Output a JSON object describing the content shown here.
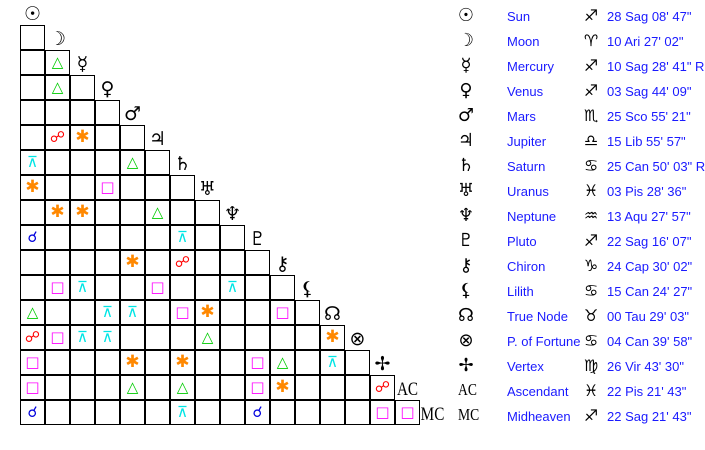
{
  "colors": {
    "trine": "#00cc00",
    "opposition": "#ff0000",
    "sextile": "#ff8800",
    "square": "#ff00ff",
    "quincunx": "#00e5e5",
    "conjunction": "#0000dd",
    "text": "#1a1aff"
  },
  "bodies": [
    {
      "icon": "sun-icon",
      "name": "Sun",
      "sign_icon": "sagittarius-icon",
      "position": "28 Sag 08' 47\""
    },
    {
      "icon": "moon-icon",
      "name": "Moon",
      "sign_icon": "aries-icon",
      "position": "10 Ari 27' 02\""
    },
    {
      "icon": "mercury-icon",
      "name": "Mercury",
      "sign_icon": "sagittarius-icon",
      "position": "10 Sag 28' 41\" R"
    },
    {
      "icon": "venus-icon",
      "name": "Venus",
      "sign_icon": "sagittarius-icon",
      "position": "03 Sag 44' 09\""
    },
    {
      "icon": "mars-icon",
      "name": "Mars",
      "sign_icon": "scorpio-icon",
      "position": "25 Sco 55' 21\""
    },
    {
      "icon": "jupiter-icon",
      "name": "Jupiter",
      "sign_icon": "libra-icon",
      "position": "15 Lib 55' 57\""
    },
    {
      "icon": "saturn-icon",
      "name": "Saturn",
      "sign_icon": "cancer-icon",
      "position": "25 Can 50' 03\" R"
    },
    {
      "icon": "uranus-icon",
      "name": "Uranus",
      "sign_icon": "pisces-icon",
      "position": "03 Pis 28' 36\""
    },
    {
      "icon": "neptune-icon",
      "name": "Neptune",
      "sign_icon": "aquarius-icon",
      "position": "13 Aqu 27' 57\""
    },
    {
      "icon": "pluto-icon",
      "name": "Pluto",
      "sign_icon": "sagittarius-icon",
      "position": "22 Sag 16' 07\""
    },
    {
      "icon": "chiron-icon",
      "name": "Chiron",
      "sign_icon": "capricorn-icon",
      "position": "24 Cap 30' 02\""
    },
    {
      "icon": "lilith-icon",
      "name": "Lilith",
      "sign_icon": "cancer-icon",
      "position": "15 Can 24' 27\""
    },
    {
      "icon": "true-node-icon",
      "name": "True Node",
      "sign_icon": "taurus-icon",
      "position": "00 Tau 29' 03\""
    },
    {
      "icon": "part-of-fortune-icon",
      "name": "P. of Fortune",
      "sign_icon": "cancer-icon",
      "position": "04 Can 39' 58\""
    },
    {
      "icon": "vertex-icon",
      "name": "Vertex",
      "sign_icon": "virgo-icon",
      "position": "26 Vir 43' 30\""
    },
    {
      "icon": "ascendant-icon",
      "label": "AC",
      "name": "Ascendant",
      "sign_icon": "pisces-icon",
      "position": "22 Pis 21' 43\""
    },
    {
      "icon": "midheaven-icon",
      "label": "MC",
      "name": "Midheaven",
      "sign_icon": "sagittarius-icon",
      "position": "22 Sag 21' 43\""
    }
  ],
  "aspect_grid": [
    [
      ""
    ],
    [
      "",
      "trine"
    ],
    [
      "",
      "trine",
      ""
    ],
    [
      "",
      "",
      "",
      ""
    ],
    [
      "",
      "opposition",
      "sextile",
      "",
      ""
    ],
    [
      "quincunx",
      "",
      "",
      "",
      "trine",
      ""
    ],
    [
      "sextile",
      "",
      "",
      "square",
      "",
      "",
      ""
    ],
    [
      "",
      "sextile",
      "sextile",
      "",
      "",
      "trine",
      "",
      ""
    ],
    [
      "conjunction",
      "",
      "",
      "",
      "",
      "",
      "quincunx",
      "",
      ""
    ],
    [
      "",
      "",
      "",
      "",
      "sextile",
      "",
      "opposition",
      "",
      "",
      ""
    ],
    [
      "",
      "square",
      "quincunx",
      "",
      "",
      "square",
      "",
      "",
      "quincunx",
      "",
      ""
    ],
    [
      "trine",
      "",
      "",
      "quincunx",
      "quincunx",
      "",
      "square",
      "sextile",
      "",
      "",
      "square",
      ""
    ],
    [
      "opposition",
      "square",
      "quincunx",
      "quincunx",
      "",
      "",
      "",
      "trine",
      "",
      "",
      "",
      "",
      "sextile"
    ],
    [
      "square",
      "",
      "",
      "",
      "sextile",
      "",
      "sextile",
      "",
      "",
      "square",
      "trine",
      "",
      "quincunx",
      ""
    ],
    [
      "square",
      "",
      "",
      "",
      "trine",
      "",
      "trine",
      "",
      "",
      "square",
      "sextile",
      "",
      "",
      "",
      "opposition"
    ],
    [
      "conjunction",
      "",
      "",
      "",
      "",
      "",
      "quincunx",
      "",
      "",
      "conjunction",
      "",
      "",
      "",
      "",
      "square",
      "square"
    ]
  ]
}
